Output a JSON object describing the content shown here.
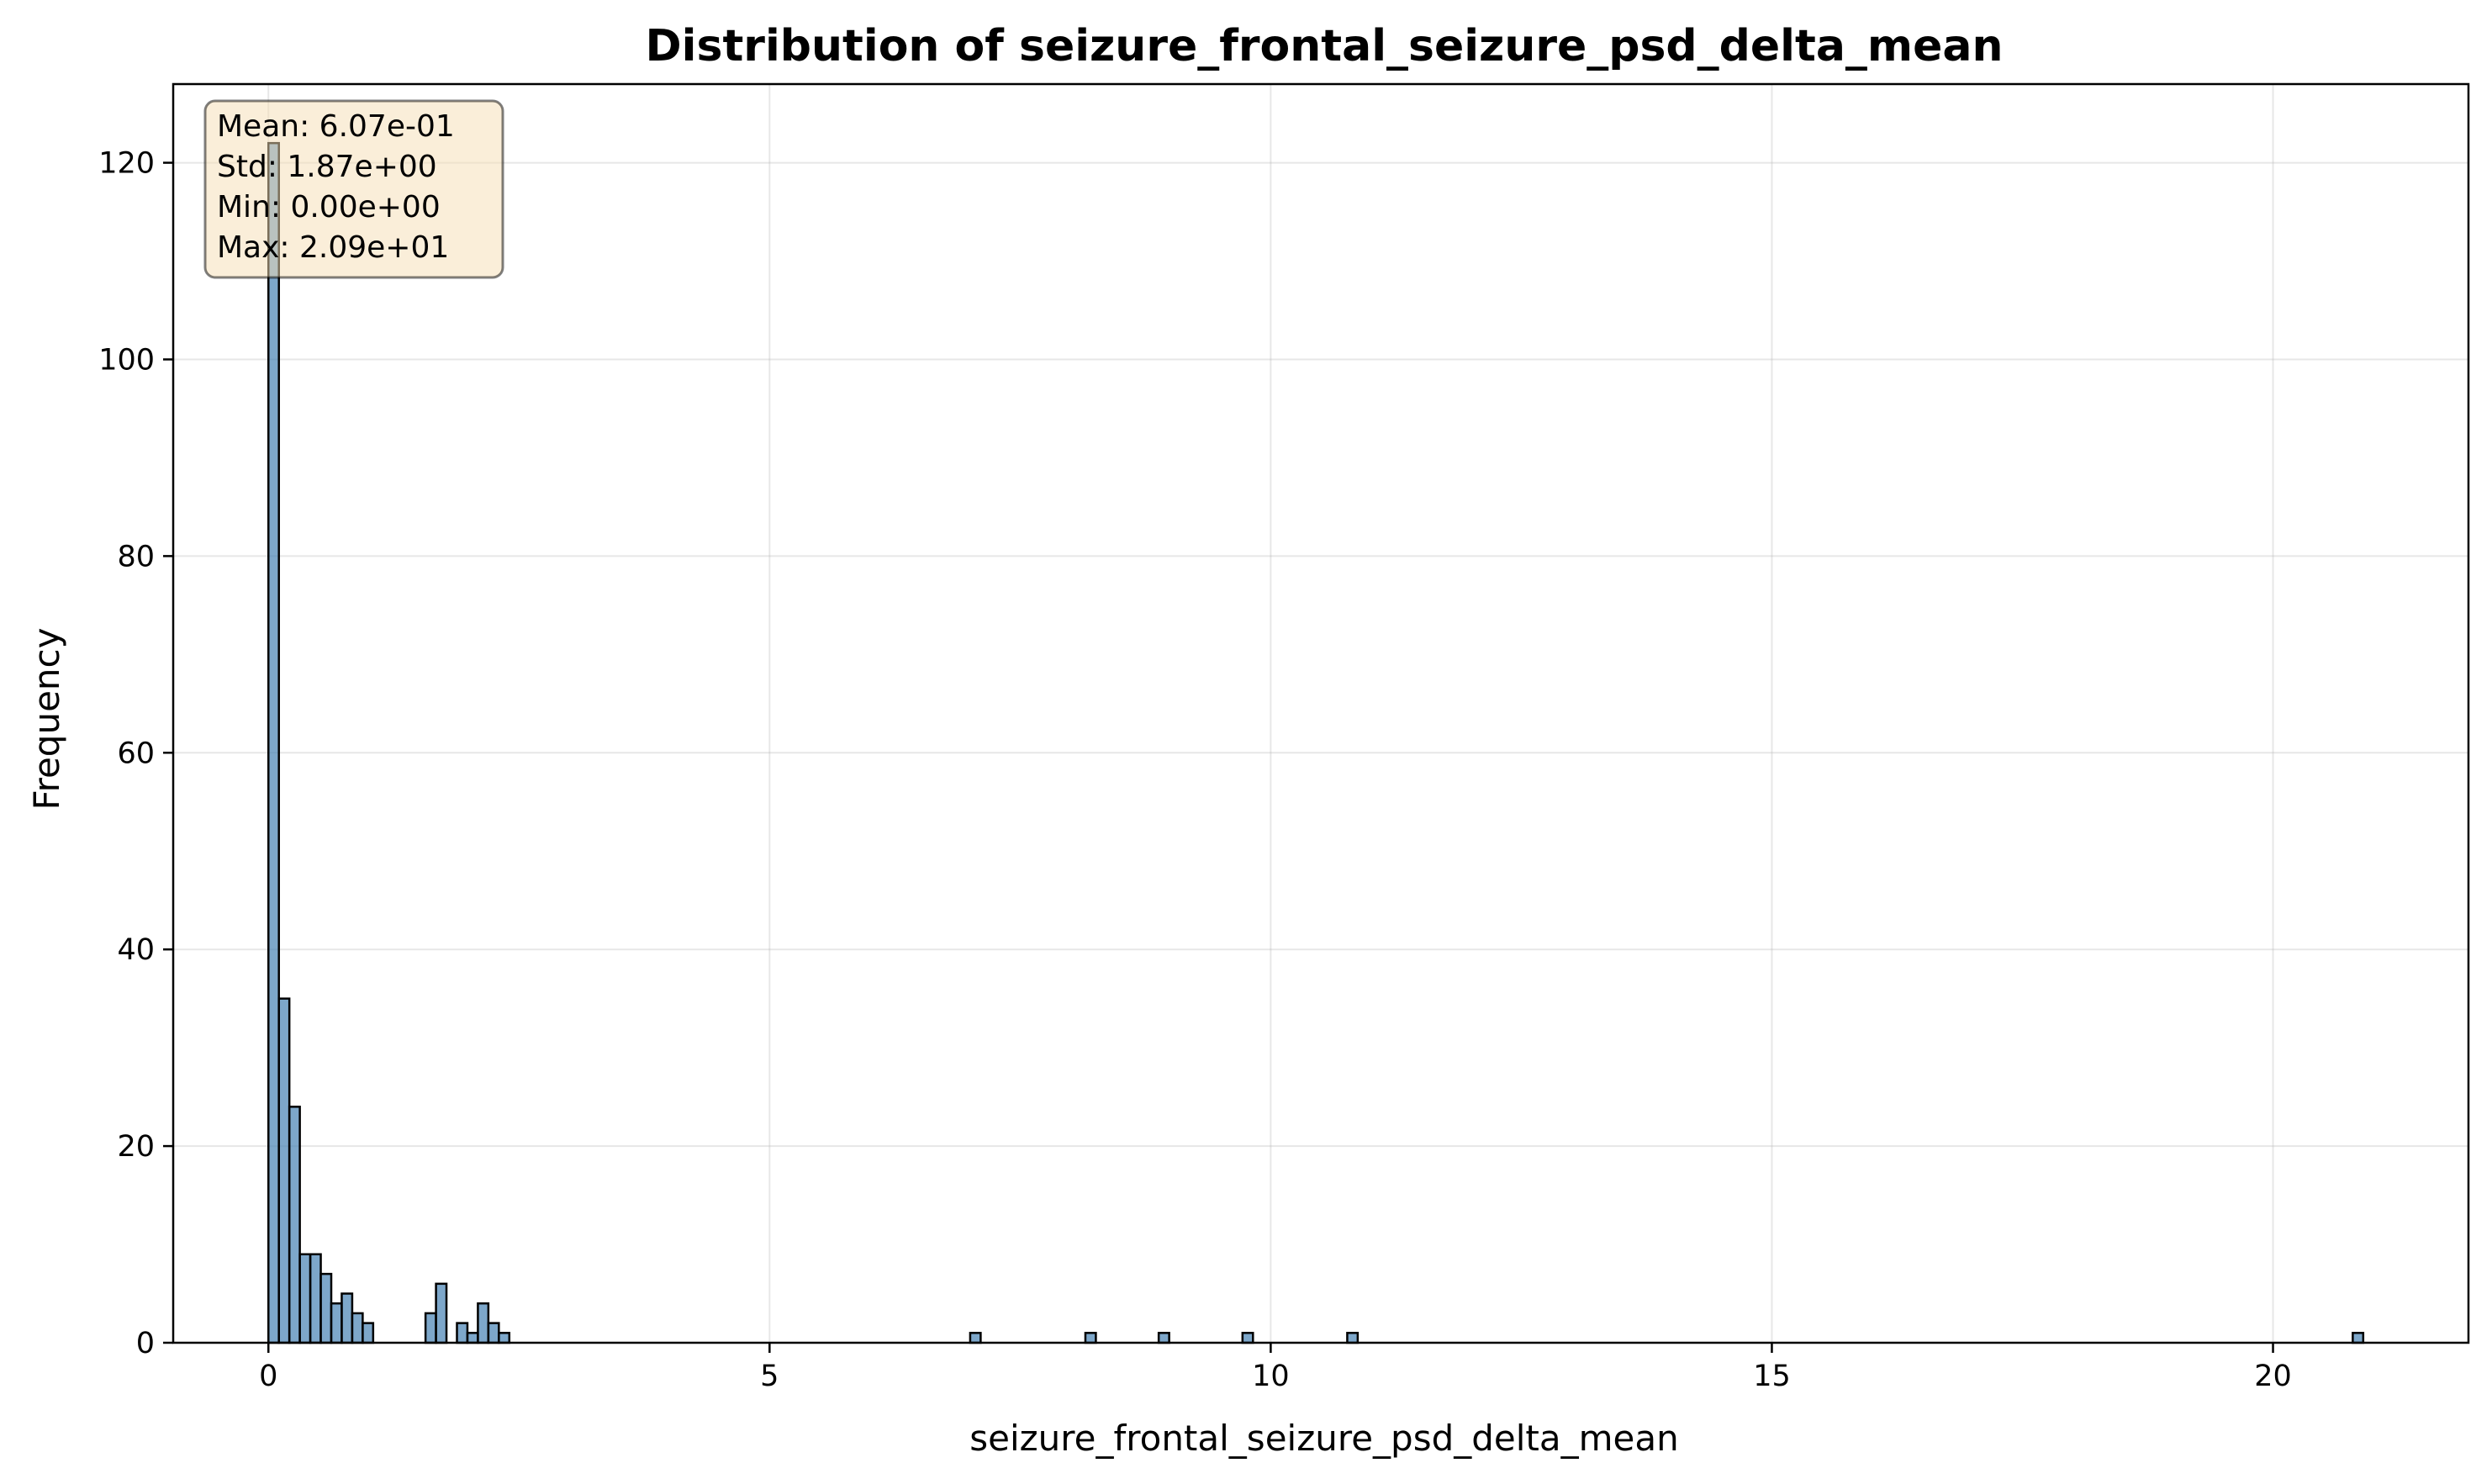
{
  "chart_data": {
    "type": "bar",
    "title": "Distribution of seizure_frontal_seizure_psd_delta_mean",
    "xlabel": "seizure_frontal_seizure_psd_delta_mean",
    "ylabel": "Frequency",
    "xlim": [
      -0.95,
      21.95
    ],
    "ylim": [
      0,
      128
    ],
    "xticks": [
      0,
      5,
      10,
      15,
      20
    ],
    "yticks": [
      0,
      20,
      40,
      60,
      80,
      100,
      120
    ],
    "grid": true,
    "bin_width": 0.1045,
    "bins": [
      {
        "x0": 0.0,
        "count": 122
      },
      {
        "x0": 0.1045,
        "count": 35
      },
      {
        "x0": 0.209,
        "count": 24
      },
      {
        "x0": 0.3135,
        "count": 9
      },
      {
        "x0": 0.418,
        "count": 9
      },
      {
        "x0": 0.5225,
        "count": 7
      },
      {
        "x0": 0.627,
        "count": 4
      },
      {
        "x0": 0.7315,
        "count": 5
      },
      {
        "x0": 0.836,
        "count": 3
      },
      {
        "x0": 0.9405,
        "count": 2
      },
      {
        "x0": 1.5675,
        "count": 3
      },
      {
        "x0": 1.672,
        "count": 6
      },
      {
        "x0": 1.881,
        "count": 2
      },
      {
        "x0": 1.9855,
        "count": 1
      },
      {
        "x0": 2.09,
        "count": 4
      },
      {
        "x0": 2.1945,
        "count": 2
      },
      {
        "x0": 2.299,
        "count": 1
      },
      {
        "x0": 7.0015,
        "count": 1
      },
      {
        "x0": 8.151,
        "count": 1
      },
      {
        "x0": 8.8825,
        "count": 1
      },
      {
        "x0": 9.7185,
        "count": 1
      },
      {
        "x0": 10.7635,
        "count": 1
      },
      {
        "x0": 20.7955,
        "count": 1
      }
    ],
    "bar_color": "#4682b4",
    "stats": {
      "mean": "Mean: 6.07e-01",
      "std": "Std: 1.87e+00",
      "min": "Min: 0.00e+00",
      "max": "Max: 2.09e+01"
    },
    "stats_box_color": "#f5deb3"
  }
}
